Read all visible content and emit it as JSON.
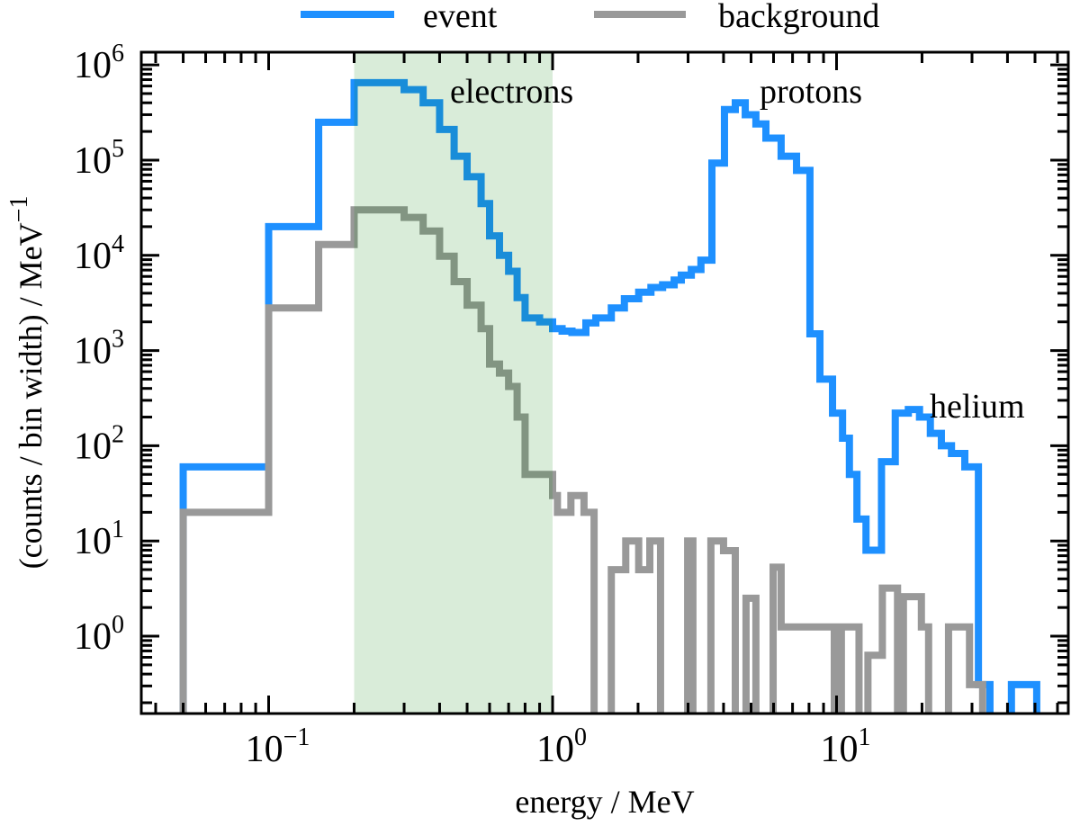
{
  "chart_data": {
    "type": "line",
    "style": "step histogram",
    "title": "",
    "xlabel": "energy / MeV",
    "ylabel": "(counts / bin width) / MeV",
    "ylabel_unit_exponent": "−1",
    "xscale": "log",
    "yscale": "log",
    "xlim": [
      0.0356,
      65.5
    ],
    "ylim": [
      0.154,
      1360000
    ],
    "grid": false,
    "legend_position": "top-center, outside plot",
    "x_ticks": [
      {
        "value": 0.1,
        "base": "10",
        "exp": "−1"
      },
      {
        "value": 1,
        "base": "10",
        "exp": "0"
      },
      {
        "value": 10,
        "base": "10",
        "exp": "1"
      }
    ],
    "y_ticks": [
      {
        "value": 1,
        "base": "10",
        "exp": "0"
      },
      {
        "value": 10,
        "base": "10",
        "exp": "1"
      },
      {
        "value": 100,
        "base": "10",
        "exp": "2"
      },
      {
        "value": 1000,
        "base": "10",
        "exp": "3"
      },
      {
        "value": 10000,
        "base": "10",
        "exp": "4"
      },
      {
        "value": 100000,
        "base": "10",
        "exp": "5"
      },
      {
        "value": 1000000,
        "base": "10",
        "exp": "6"
      }
    ],
    "shaded_region": {
      "x_range": [
        0.2,
        1.0
      ],
      "color": "#008000",
      "opacity": 0.15
    },
    "annotations": [
      {
        "text": "electrons",
        "x": 0.42,
        "y": 500000
      },
      {
        "text": "protons",
        "x": 4.9,
        "y": 500000
      },
      {
        "text": "helium",
        "x": 21.5,
        "y": 150
      }
    ],
    "series": [
      {
        "name": "event",
        "color": "#1e90ff",
        "bin_edges": [
          0.05,
          0.1,
          0.15,
          0.2,
          0.3,
          0.35,
          0.4,
          0.45,
          0.5,
          0.56,
          0.6,
          0.65,
          0.7,
          0.75,
          0.8,
          0.9,
          1.0,
          1.08,
          1.17,
          1.31,
          1.42,
          1.61,
          1.79,
          2.01,
          2.22,
          2.44,
          2.68,
          2.84,
          3.08,
          3.33,
          3.64,
          4.03,
          4.4,
          4.77,
          5.2,
          5.64,
          6.38,
          7.23,
          8.06,
          8.74,
          9.68,
          10.5,
          11.1,
          11.8,
          12.7,
          14.4,
          16.1,
          17.9,
          19.6,
          21.4,
          23.4,
          25.4,
          28.3,
          31.6,
          34.7,
          41.3,
          50.7
        ],
        "values": [
          60,
          20000,
          250000,
          650000,
          550000,
          400000,
          210000,
          110000,
          67000,
          35000,
          16000,
          10000,
          6800,
          3600,
          2200,
          2000,
          1700,
          1600,
          1550,
          1950,
          2200,
          2800,
          3500,
          4100,
          4600,
          4900,
          5500,
          6200,
          7100,
          8900,
          93000,
          340000,
          400000,
          300000,
          240000,
          170000,
          110000,
          78000,
          1500,
          500,
          220,
          120,
          50,
          17,
          8,
          68,
          220,
          240,
          200,
          135,
          100,
          83,
          60,
          0.31,
          0,
          0.31
        ]
      },
      {
        "name": "background",
        "color": "#999999",
        "bin_edges": [
          0.05,
          0.1,
          0.15,
          0.2,
          0.3,
          0.35,
          0.4,
          0.45,
          0.5,
          0.56,
          0.6,
          0.65,
          0.7,
          0.75,
          0.8,
          1.0,
          1.04,
          1.16,
          1.29,
          1.4,
          1.61,
          1.81,
          2.01,
          2.2,
          2.4,
          2.99,
          3.12,
          3.61,
          4.0,
          4.4,
          4.8,
          5.2,
          5.98,
          6.38,
          9.82,
          10.4,
          12.0,
          12.9,
          14.5,
          16.4,
          17.2,
          19.9,
          21.1,
          24.8,
          29.4,
          32.7
        ],
        "values": [
          20,
          2800,
          13000,
          30000,
          25000,
          18000,
          9800,
          5300,
          3000,
          1700,
          720,
          580,
          420,
          200,
          50,
          30,
          20,
          30,
          20,
          0,
          5,
          10,
          5,
          10,
          0,
          10,
          0,
          10,
          7.9,
          0,
          2.5,
          0,
          5.3,
          1.25,
          0,
          1.25,
          0,
          0.63,
          3.2,
          0,
          2.6,
          1.25,
          0,
          1.25,
          0.31
        ]
      }
    ]
  }
}
